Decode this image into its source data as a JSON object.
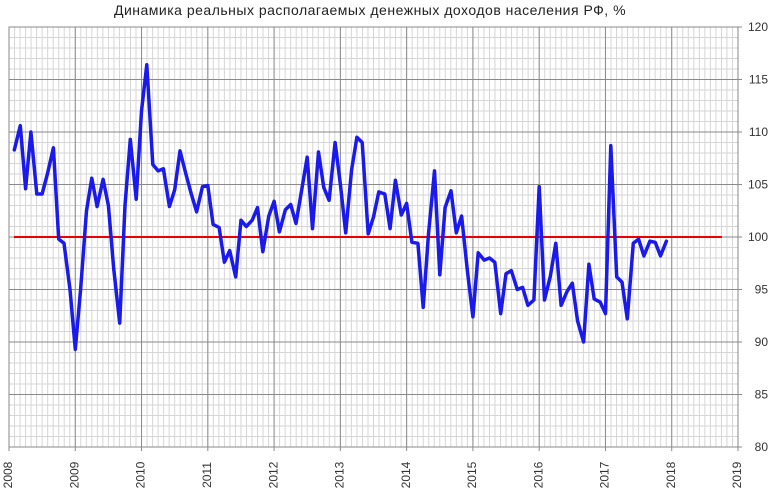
{
  "chart_data": {
    "type": "line",
    "title": "Динамика реальных располагаемых денежных доходов населения РФ, %",
    "xlabel": "",
    "ylabel": "",
    "xlim": [
      2008,
      2019
    ],
    "ylim": [
      80,
      120
    ],
    "x_ticks": [
      2008,
      2009,
      2010,
      2011,
      2012,
      2013,
      2014,
      2015,
      2016,
      2017,
      2018,
      2019
    ],
    "y_ticks": [
      80,
      85,
      90,
      95,
      100,
      105,
      110,
      115,
      120
    ],
    "grid": true,
    "y_axis_side": "right",
    "reference_line": {
      "y": 100,
      "color": "#ee0000"
    },
    "series": [
      {
        "name": "",
        "color": "#1a1aee",
        "points": [
          [
            2008.08,
            108.3
          ],
          [
            2008.17,
            110.6
          ],
          [
            2008.25,
            104.6
          ],
          [
            2008.33,
            110.0
          ],
          [
            2008.42,
            104.1
          ],
          [
            2008.5,
            104.1
          ],
          [
            2008.58,
            106.0
          ],
          [
            2008.67,
            108.5
          ],
          [
            2008.75,
            99.8
          ],
          [
            2008.83,
            99.4
          ],
          [
            2008.92,
            95.0
          ],
          [
            2009.0,
            89.3
          ],
          [
            2009.08,
            95.0
          ],
          [
            2009.17,
            102.5
          ],
          [
            2009.25,
            105.6
          ],
          [
            2009.33,
            102.9
          ],
          [
            2009.42,
            105.5
          ],
          [
            2009.5,
            103.0
          ],
          [
            2009.58,
            97.0
          ],
          [
            2009.67,
            91.8
          ],
          [
            2009.75,
            103.0
          ],
          [
            2009.83,
            109.3
          ],
          [
            2009.92,
            103.6
          ],
          [
            2010.0,
            112.0
          ],
          [
            2010.08,
            116.4
          ],
          [
            2010.17,
            106.9
          ],
          [
            2010.25,
            106.3
          ],
          [
            2010.33,
            106.5
          ],
          [
            2010.42,
            102.9
          ],
          [
            2010.5,
            104.5
          ],
          [
            2010.58,
            108.2
          ],
          [
            2010.67,
            106.0
          ],
          [
            2010.75,
            104.1
          ],
          [
            2010.83,
            102.4
          ],
          [
            2010.92,
            104.8
          ],
          [
            2011.0,
            104.9
          ],
          [
            2011.08,
            101.2
          ],
          [
            2011.17,
            100.9
          ],
          [
            2011.25,
            97.6
          ],
          [
            2011.33,
            98.7
          ],
          [
            2011.42,
            96.2
          ],
          [
            2011.5,
            101.6
          ],
          [
            2011.58,
            101.0
          ],
          [
            2011.67,
            101.6
          ],
          [
            2011.75,
            102.8
          ],
          [
            2011.83,
            98.6
          ],
          [
            2011.92,
            102.0
          ],
          [
            2012.0,
            103.4
          ],
          [
            2012.08,
            100.5
          ],
          [
            2012.17,
            102.6
          ],
          [
            2012.25,
            103.1
          ],
          [
            2012.33,
            101.3
          ],
          [
            2012.42,
            104.6
          ],
          [
            2012.5,
            107.6
          ],
          [
            2012.58,
            100.8
          ],
          [
            2012.67,
            108.1
          ],
          [
            2012.75,
            104.7
          ],
          [
            2012.83,
            103.5
          ],
          [
            2012.92,
            109.0
          ],
          [
            2013.0,
            105.0
          ],
          [
            2013.08,
            100.4
          ],
          [
            2013.17,
            106.4
          ],
          [
            2013.25,
            109.5
          ],
          [
            2013.33,
            109.0
          ],
          [
            2013.42,
            100.3
          ],
          [
            2013.5,
            101.9
          ],
          [
            2013.58,
            104.3
          ],
          [
            2013.67,
            104.1
          ],
          [
            2013.75,
            100.8
          ],
          [
            2013.83,
            105.4
          ],
          [
            2013.92,
            102.1
          ],
          [
            2014.0,
            103.2
          ],
          [
            2014.08,
            99.5
          ],
          [
            2014.17,
            99.4
          ],
          [
            2014.25,
            93.3
          ],
          [
            2014.33,
            100.3
          ],
          [
            2014.42,
            106.3
          ],
          [
            2014.5,
            96.4
          ],
          [
            2014.58,
            102.8
          ],
          [
            2014.67,
            104.4
          ],
          [
            2014.75,
            100.4
          ],
          [
            2014.83,
            102.0
          ],
          [
            2014.92,
            96.6
          ],
          [
            2015.0,
            92.4
          ],
          [
            2015.08,
            98.5
          ],
          [
            2015.17,
            97.8
          ],
          [
            2015.25,
            98.0
          ],
          [
            2015.33,
            97.6
          ],
          [
            2015.42,
            92.7
          ],
          [
            2015.5,
            96.5
          ],
          [
            2015.58,
            96.8
          ],
          [
            2015.67,
            95.0
          ],
          [
            2015.75,
            95.2
          ],
          [
            2015.83,
            93.5
          ],
          [
            2015.92,
            94.0
          ],
          [
            2016.0,
            104.8
          ],
          [
            2016.08,
            94.0
          ],
          [
            2016.17,
            96.3
          ],
          [
            2016.25,
            99.4
          ],
          [
            2016.33,
            93.5
          ],
          [
            2016.42,
            94.8
          ],
          [
            2016.5,
            95.6
          ],
          [
            2016.58,
            92.0
          ],
          [
            2016.67,
            90.0
          ],
          [
            2016.75,
            97.4
          ],
          [
            2016.83,
            94.1
          ],
          [
            2016.92,
            93.8
          ],
          [
            2017.0,
            92.7
          ],
          [
            2017.08,
            108.7
          ],
          [
            2017.17,
            96.2
          ],
          [
            2017.25,
            95.7
          ],
          [
            2017.33,
            92.2
          ],
          [
            2017.42,
            99.4
          ],
          [
            2017.5,
            99.8
          ],
          [
            2017.58,
            98.2
          ],
          [
            2017.67,
            99.6
          ],
          [
            2017.75,
            99.5
          ],
          [
            2017.83,
            98.2
          ],
          [
            2017.92,
            99.6
          ]
        ]
      }
    ]
  }
}
